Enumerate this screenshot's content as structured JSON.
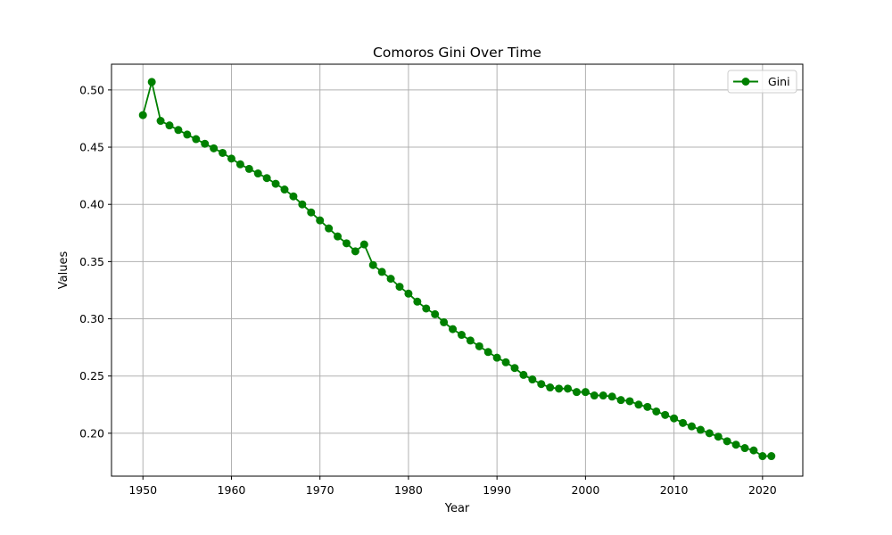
{
  "chart_data": {
    "type": "line",
    "title": "Comoros Gini Over Time",
    "xlabel": "Year",
    "ylabel": "Values",
    "xlim": [
      1946.45,
      2024.55
    ],
    "ylim": [
      0.1625,
      0.5225
    ],
    "xticks": [
      1950,
      1960,
      1970,
      1980,
      1990,
      2000,
      2010,
      2020
    ],
    "yticks": [
      0.2,
      0.25,
      0.3,
      0.35,
      0.4,
      0.45,
      0.5
    ],
    "grid": true,
    "legend_position": "top-right",
    "series": [
      {
        "name": "Gini",
        "color": "#008000",
        "marker": "circle",
        "x": [
          1950,
          1951,
          1952,
          1953,
          1954,
          1955,
          1956,
          1957,
          1958,
          1959,
          1960,
          1961,
          1962,
          1963,
          1964,
          1965,
          1966,
          1967,
          1968,
          1969,
          1970,
          1971,
          1972,
          1973,
          1974,
          1975,
          1976,
          1977,
          1978,
          1979,
          1980,
          1981,
          1982,
          1983,
          1984,
          1985,
          1986,
          1987,
          1988,
          1989,
          1990,
          1991,
          1992,
          1993,
          1994,
          1995,
          1996,
          1997,
          1998,
          1999,
          2000,
          2001,
          2002,
          2003,
          2004,
          2005,
          2006,
          2007,
          2008,
          2009,
          2010,
          2011,
          2012,
          2013,
          2014,
          2015,
          2016,
          2017,
          2018,
          2019,
          2020,
          2021
        ],
        "values": [
          0.478,
          0.507,
          0.473,
          0.469,
          0.465,
          0.461,
          0.457,
          0.453,
          0.449,
          0.445,
          0.44,
          0.435,
          0.431,
          0.427,
          0.423,
          0.418,
          0.413,
          0.407,
          0.4,
          0.393,
          0.386,
          0.379,
          0.372,
          0.366,
          0.359,
          0.365,
          0.347,
          0.341,
          0.335,
          0.328,
          0.322,
          0.315,
          0.309,
          0.304,
          0.297,
          0.291,
          0.286,
          0.281,
          0.276,
          0.271,
          0.266,
          0.262,
          0.257,
          0.251,
          0.247,
          0.243,
          0.24,
          0.239,
          0.239,
          0.236,
          0.236,
          0.233,
          0.233,
          0.232,
          0.229,
          0.228,
          0.225,
          0.223,
          0.219,
          0.216,
          0.213,
          0.209,
          0.206,
          0.203,
          0.2,
          0.197,
          0.193,
          0.19,
          0.187,
          0.185,
          0.18,
          0.18
        ]
      }
    ]
  }
}
